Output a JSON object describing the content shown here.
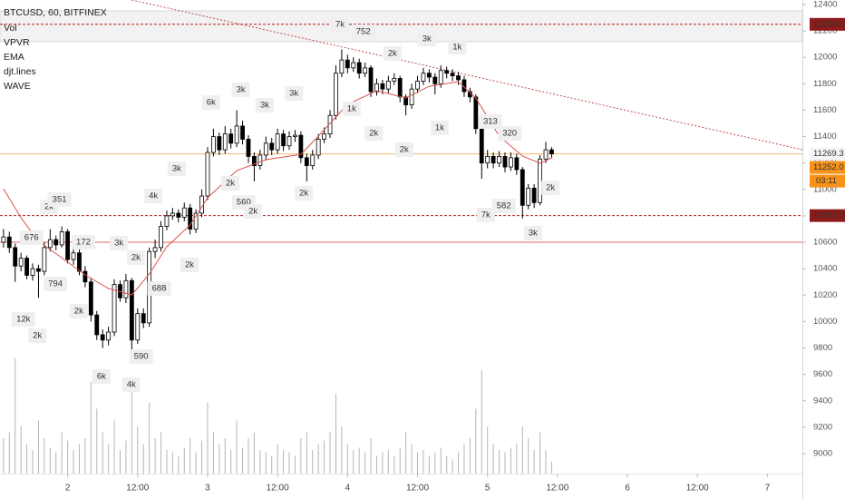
{
  "chart_data": {
    "type": "candlestick",
    "title": "BTCUSD, 60, BITFINEX",
    "indicators": [
      "Vol",
      "VPVR",
      "EMA",
      "djt.lines",
      "WAVE"
    ],
    "up_color": "#ffffff",
    "down_color": "#000000",
    "wick_color": "#000000",
    "volume_color": "#b5b5b5",
    "xlim": [
      12.4,
      150
    ],
    "ylim": [
      8849,
      12434
    ],
    "xticks": [
      {
        "value": 24,
        "label": "2"
      },
      {
        "value": 36,
        "label": "12:00"
      },
      {
        "value": 48,
        "label": "3"
      },
      {
        "value": 60,
        "label": "12:00"
      },
      {
        "value": 72,
        "label": "4"
      },
      {
        "value": 84,
        "label": "12:00"
      },
      {
        "value": 96,
        "label": "5"
      },
      {
        "value": 108,
        "label": "12:00"
      },
      {
        "value": 120,
        "label": "6"
      },
      {
        "value": 132,
        "label": "12:00"
      },
      {
        "value": 144,
        "label": "7"
      }
    ],
    "yticks": [
      9000,
      9200,
      9400,
      9600,
      9800,
      10000,
      10200,
      10400,
      10600,
      10800,
      11000,
      11200,
      11400,
      11600,
      11800,
      12000,
      12200,
      12400
    ],
    "x": [
      13,
      14,
      15,
      16,
      17,
      18,
      19,
      20,
      21,
      22,
      23,
      24,
      25,
      26,
      27,
      28,
      29,
      30,
      31,
      32,
      33,
      34,
      35,
      36,
      37,
      38,
      39,
      40,
      41,
      42,
      43,
      44,
      45,
      46,
      47,
      48,
      49,
      50,
      51,
      52,
      53,
      54,
      55,
      56,
      57,
      58,
      59,
      60,
      61,
      62,
      63,
      64,
      65,
      66,
      67,
      68,
      69,
      70,
      71,
      72,
      73,
      74,
      75,
      76,
      77,
      78,
      79,
      80,
      81,
      82,
      83,
      84,
      85,
      86,
      87,
      88,
      89,
      90,
      91,
      92,
      93,
      94,
      95,
      96,
      97,
      98,
      99,
      100,
      101,
      102,
      103,
      104,
      105,
      106,
      107
    ],
    "open": [
      10600,
      10640,
      10560,
      10420,
      10480,
      10350,
      10400,
      10380,
      10560,
      10620,
      10580,
      10680,
      10470,
      10520,
      10380,
      10300,
      10050,
      9900,
      9860,
      9920,
      10280,
      10180,
      10310,
      9860,
      10060,
      9990,
      10530,
      10560,
      10720,
      10800,
      10820,
      10790,
      10860,
      10700,
      10820,
      10950,
      11280,
      11400,
      11300,
      11420,
      11350,
      11480,
      11380,
      11250,
      11180,
      11260,
      11350,
      11300,
      11420,
      11330,
      11400,
      11410,
      11240,
      11180,
      11260,
      11380,
      11420,
      11560,
      11880,
      11980,
      11920,
      11960,
      11880,
      11920,
      11740,
      11800,
      11760,
      11820,
      11840,
      11700,
      11640,
      11760,
      11820,
      11880,
      11850,
      11800,
      11900,
      11880,
      11860,
      11830,
      11740,
      11700,
      11460,
      11200,
      11250,
      11200,
      11250,
      11170,
      11240,
      11150,
      10880,
      11010,
      10900,
      11230,
      11300
    ],
    "high": [
      10700,
      10680,
      10590,
      10520,
      10500,
      10440,
      10430,
      10600,
      10700,
      10650,
      10720,
      10700,
      10560,
      10550,
      10420,
      10330,
      10080,
      9940,
      9960,
      10320,
      10310,
      10360,
      10330,
      10100,
      10100,
      10560,
      10620,
      10760,
      10840,
      10860,
      10850,
      10900,
      10890,
      10850,
      11000,
      11320,
      11460,
      11430,
      11480,
      11460,
      11600,
      11520,
      11410,
      11280,
      11300,
      11400,
      11390,
      11460,
      11450,
      11440,
      11450,
      11440,
      11270,
      11300,
      11420,
      11470,
      11600,
      11940,
      12060,
      12020,
      12000,
      11990,
      11960,
      11940,
      11840,
      11830,
      11860,
      11880,
      11860,
      11720,
      11800,
      11860,
      11920,
      11910,
      11880,
      11940,
      11930,
      11910,
      11890,
      11860,
      11770,
      11720,
      11480,
      11300,
      11280,
      11290,
      11280,
      11280,
      11270,
      11170,
      11040,
      11040,
      11260,
      11360,
      11320
    ],
    "low": [
      10560,
      10520,
      10300,
      10380,
      10320,
      10310,
      10180,
      10350,
      10530,
      10540,
      10560,
      10440,
      10430,
      10350,
      10260,
      10000,
      9860,
      9800,
      9820,
      9890,
      10150,
      10140,
      9740,
      9830,
      9950,
      9960,
      10480,
      10530,
      10690,
      10770,
      10750,
      10760,
      10660,
      10670,
      10790,
      10920,
      11250,
      11260,
      11270,
      11310,
      11320,
      11340,
      11200,
      11060,
      11150,
      11220,
      11260,
      11270,
      11290,
      11300,
      11360,
      11200,
      11060,
      11150,
      11230,
      11350,
      11390,
      11530,
      11850,
      11880,
      11890,
      11840,
      11850,
      11700,
      11710,
      11720,
      11730,
      11790,
      11660,
      11560,
      11610,
      11730,
      11790,
      11810,
      11720,
      11770,
      11840,
      11820,
      11790,
      11700,
      11660,
      11420,
      11080,
      11160,
      11160,
      11170,
      11130,
      11140,
      11110,
      10780,
      10850,
      10860,
      10880,
      11200,
      11240
    ],
    "close": [
      10640,
      10560,
      10420,
      10480,
      10350,
      10400,
      10380,
      10560,
      10620,
      10580,
      10680,
      10470,
      10520,
      10380,
      10300,
      10050,
      9900,
      9860,
      9920,
      10280,
      10180,
      10310,
      9860,
      10060,
      9990,
      10530,
      10560,
      10720,
      10800,
      10820,
      10790,
      10860,
      10700,
      10820,
      10950,
      11280,
      11400,
      11300,
      11420,
      11350,
      11480,
      11380,
      11250,
      11180,
      11260,
      11350,
      11300,
      11420,
      11330,
      11400,
      11410,
      11240,
      11180,
      11260,
      11380,
      11420,
      11560,
      11880,
      11980,
      11920,
      11960,
      11880,
      11920,
      11740,
      11800,
      11760,
      11820,
      11840,
      11700,
      11640,
      11760,
      11820,
      11880,
      11850,
      11800,
      11900,
      11880,
      11860,
      11830,
      11740,
      11700,
      11460,
      11200,
      11250,
      11200,
      11250,
      11170,
      11240,
      11150,
      10880,
      11010,
      10900,
      11230,
      11300,
      11269
    ],
    "volume": [
      30,
      35,
      98,
      40,
      25,
      20,
      45,
      30,
      22,
      18,
      35,
      28,
      20,
      25,
      30,
      78,
      55,
      35,
      25,
      45,
      20,
      28,
      78,
      40,
      25,
      60,
      30,
      35,
      20,
      18,
      15,
      22,
      30,
      18,
      28,
      60,
      35,
      25,
      30,
      20,
      45,
      22,
      30,
      35,
      20,
      18,
      15,
      25,
      20,
      18,
      15,
      30,
      35,
      20,
      25,
      28,
      35,
      68,
      40,
      25,
      20,
      22,
      18,
      30,
      15,
      18,
      20,
      15,
      22,
      35,
      25,
      18,
      20,
      15,
      18,
      22,
      15,
      12,
      18,
      25,
      30,
      55,
      88,
      40,
      25,
      20,
      18,
      22,
      25,
      40,
      30,
      20,
      35,
      20,
      10
    ],
    "ema": {
      "color": "#d9534f",
      "x": [
        13,
        16,
        19,
        23,
        27,
        31,
        35,
        38,
        41,
        45,
        48,
        53,
        58,
        64,
        67,
        72,
        77,
        82,
        86,
        91,
        94,
        98,
        102,
        105,
        107
      ],
      "values": [
        11005,
        10786,
        10607,
        10483,
        10353,
        10250,
        10202,
        10360,
        10566,
        10731,
        10937,
        11143,
        11225,
        11266,
        11404,
        11644,
        11747,
        11692,
        11781,
        11816,
        11692,
        11404,
        11253,
        11198,
        11239
      ]
    },
    "band": [
      12118,
      12352
    ],
    "trendline": {
      "color": "#c0504d",
      "x": [
        35,
        150
      ],
      "y": [
        12434,
        11301
      ]
    },
    "levels": [
      {
        "value": 12250,
        "color": "#b71c1c",
        "style": "dashed"
      },
      {
        "value": 11269.3,
        "color": "#f5b971",
        "style": "solid"
      },
      {
        "value": 10802,
        "color": "#b71c1c",
        "style": "dashed"
      },
      {
        "value": 10600,
        "color": "#e06666",
        "style": "solid"
      }
    ],
    "price_labels": [
      {
        "value": 12250,
        "label": "12250.0",
        "color": "#8e1b1b",
        "text_color": "#ffffff"
      },
      {
        "value": 11269.3,
        "label": "11269.3",
        "color": "#f4f4f4",
        "text_color": "#333333"
      },
      {
        "value": 11252,
        "label": "11252.0",
        "color": "#f7931a",
        "text_color": "#ffffff",
        "sub": "03:11"
      },
      {
        "value": 10802,
        "label": "10802.0",
        "color": "#8e1b1b",
        "text_color": "#ffffff"
      }
    ],
    "annotations": [
      {
        "text": "12k",
        "x": 16.4,
        "y": 10016
      },
      {
        "text": "2k",
        "x": 18.8,
        "y": 9893
      },
      {
        "text": "794",
        "x": 21.9,
        "y": 10284
      },
      {
        "text": "2k",
        "x": 20.8,
        "y": 10868
      },
      {
        "text": "351",
        "x": 22.6,
        "y": 10923
      },
      {
        "text": "676",
        "x": 17.8,
        "y": 10635
      },
      {
        "text": "172",
        "x": 26.7,
        "y": 10600
      },
      {
        "text": "3k",
        "x": 32.8,
        "y": 10593
      },
      {
        "text": "2k",
        "x": 25.9,
        "y": 10078
      },
      {
        "text": "2k",
        "x": 35.7,
        "y": 10484
      },
      {
        "text": "4k",
        "x": 38.7,
        "y": 10950
      },
      {
        "text": "3k",
        "x": 42.7,
        "y": 11157
      },
      {
        "text": "6k",
        "x": 48.6,
        "y": 11658
      },
      {
        "text": "3k",
        "x": 53.7,
        "y": 11754
      },
      {
        "text": "3k",
        "x": 57.8,
        "y": 11637
      },
      {
        "text": "3k",
        "x": 62.8,
        "y": 11727
      },
      {
        "text": "2k",
        "x": 51.9,
        "y": 11047
      },
      {
        "text": "560",
        "x": 54.2,
        "y": 10902
      },
      {
        "text": "2k",
        "x": 55.8,
        "y": 10834
      },
      {
        "text": "2k",
        "x": 64.5,
        "y": 10971
      },
      {
        "text": "688",
        "x": 39.7,
        "y": 10250
      },
      {
        "text": "2k",
        "x": 44.9,
        "y": 10429
      },
      {
        "text": "590",
        "x": 36.6,
        "y": 9735
      },
      {
        "text": "6k",
        "x": 29.8,
        "y": 9584
      },
      {
        "text": "4k",
        "x": 34.9,
        "y": 9522
      },
      {
        "text": "1k",
        "x": 72.7,
        "y": 11610
      },
      {
        "text": "7k",
        "x": 70.7,
        "y": 12249
      },
      {
        "text": "752",
        "x": 74.7,
        "y": 12194
      },
      {
        "text": "3k",
        "x": 85.6,
        "y": 12139
      },
      {
        "text": "1k",
        "x": 90.8,
        "y": 12077
      },
      {
        "text": "2k",
        "x": 79.7,
        "y": 12029
      },
      {
        "text": "2k",
        "x": 76.5,
        "y": 11424
      },
      {
        "text": "2k",
        "x": 81.7,
        "y": 11301
      },
      {
        "text": "1k",
        "x": 87.8,
        "y": 11466
      },
      {
        "text": "313",
        "x": 96.5,
        "y": 11514
      },
      {
        "text": "320",
        "x": 99.8,
        "y": 11424
      },
      {
        "text": "7k",
        "x": 95.7,
        "y": 10806
      },
      {
        "text": "582",
        "x": 98.8,
        "y": 10875
      },
      {
        "text": "3k",
        "x": 103.8,
        "y": 10669
      },
      {
        "text": "2k",
        "x": 106.8,
        "y": 11012,
        "color": "#c62828"
      }
    ]
  }
}
